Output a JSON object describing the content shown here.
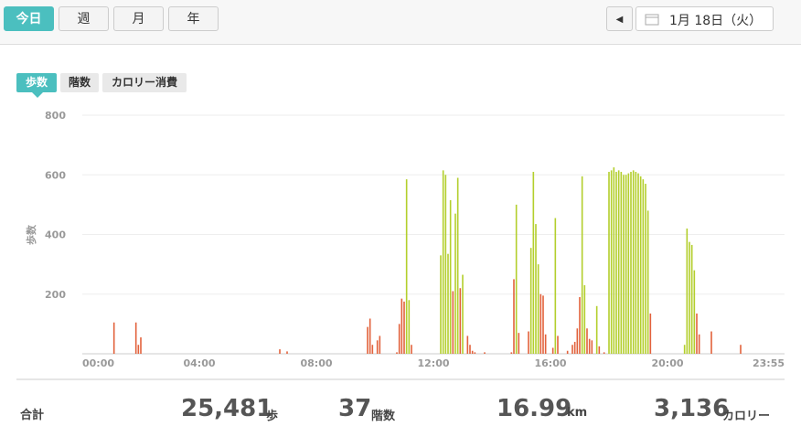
{
  "header": {
    "tabs": [
      "今日",
      "週",
      "月",
      "年"
    ],
    "date": "1月 18日（火）"
  },
  "chart_tabs": [
    "歩数",
    "階数",
    "カロリー消費"
  ],
  "chart_data": {
    "type": "bar",
    "y_label": "歩数",
    "xlim": [
      0,
      1440
    ],
    "ylim": [
      0,
      800
    ],
    "xticks": [
      {
        "value": 0,
        "label": "00:00"
      },
      {
        "value": 240,
        "label": "04:00"
      },
      {
        "value": 480,
        "label": "08:00"
      },
      {
        "value": 720,
        "label": "12:00"
      },
      {
        "value": 960,
        "label": "16:00"
      },
      {
        "value": 1200,
        "label": "20:00"
      },
      {
        "value": 1435,
        "label": "23:55"
      }
    ],
    "yticks": [
      200,
      400,
      600,
      800
    ],
    "grid": true,
    "series": [
      {
        "color": "#e2623c",
        "x": [
          65,
          110,
          115,
          120,
          405,
          420,
          585,
          590,
          595,
          605,
          610,
          645,
          650,
          655,
          660,
          675,
          760,
          775,
          790,
          795,
          800,
          805,
          825,
          880,
          885,
          895,
          915,
          940,
          945,
          950,
          965,
          975,
          995,
          1005,
          1010,
          1015,
          1020,
          1035,
          1040,
          1045,
          1060,
          1070,
          1165,
          1260,
          1265,
          1290,
          1350
        ],
        "values": [
          105,
          105,
          30,
          55,
          15,
          8,
          90,
          118,
          30,
          45,
          60,
          5,
          100,
          185,
          175,
          30,
          210,
          220,
          60,
          30,
          10,
          5,
          5,
          5,
          250,
          70,
          75,
          200,
          195,
          65,
          20,
          60,
          10,
          30,
          40,
          85,
          190,
          85,
          50,
          45,
          25,
          5,
          135,
          135,
          65,
          75,
          30
        ]
      },
      {
        "color": "#b3cf2c",
        "x": [
          665,
          670,
          735,
          740,
          745,
          750,
          755,
          765,
          770,
          780,
          890,
          920,
          925,
          930,
          935,
          970,
          1025,
          1030,
          1055,
          1080,
          1085,
          1090,
          1095,
          1100,
          1105,
          1110,
          1115,
          1120,
          1125,
          1130,
          1135,
          1140,
          1145,
          1150,
          1155,
          1160,
          1235,
          1240,
          1245,
          1250,
          1255
        ],
        "values": [
          585,
          180,
          330,
          615,
          600,
          335,
          515,
          470,
          590,
          265,
          500,
          355,
          610,
          435,
          300,
          455,
          595,
          230,
          160,
          610,
          615,
          625,
          610,
          615,
          610,
          600,
          600,
          605,
          610,
          615,
          610,
          605,
          595,
          585,
          570,
          480,
          30,
          420,
          375,
          365,
          280
        ]
      }
    ]
  },
  "summary": {
    "label": "合計",
    "items": [
      {
        "value": "25,481",
        "unit": "歩"
      },
      {
        "value": "37",
        "unit": "階数"
      },
      {
        "value": "16.99",
        "unit": "km"
      },
      {
        "value": "3,136",
        "unit": "カロリー"
      }
    ]
  }
}
